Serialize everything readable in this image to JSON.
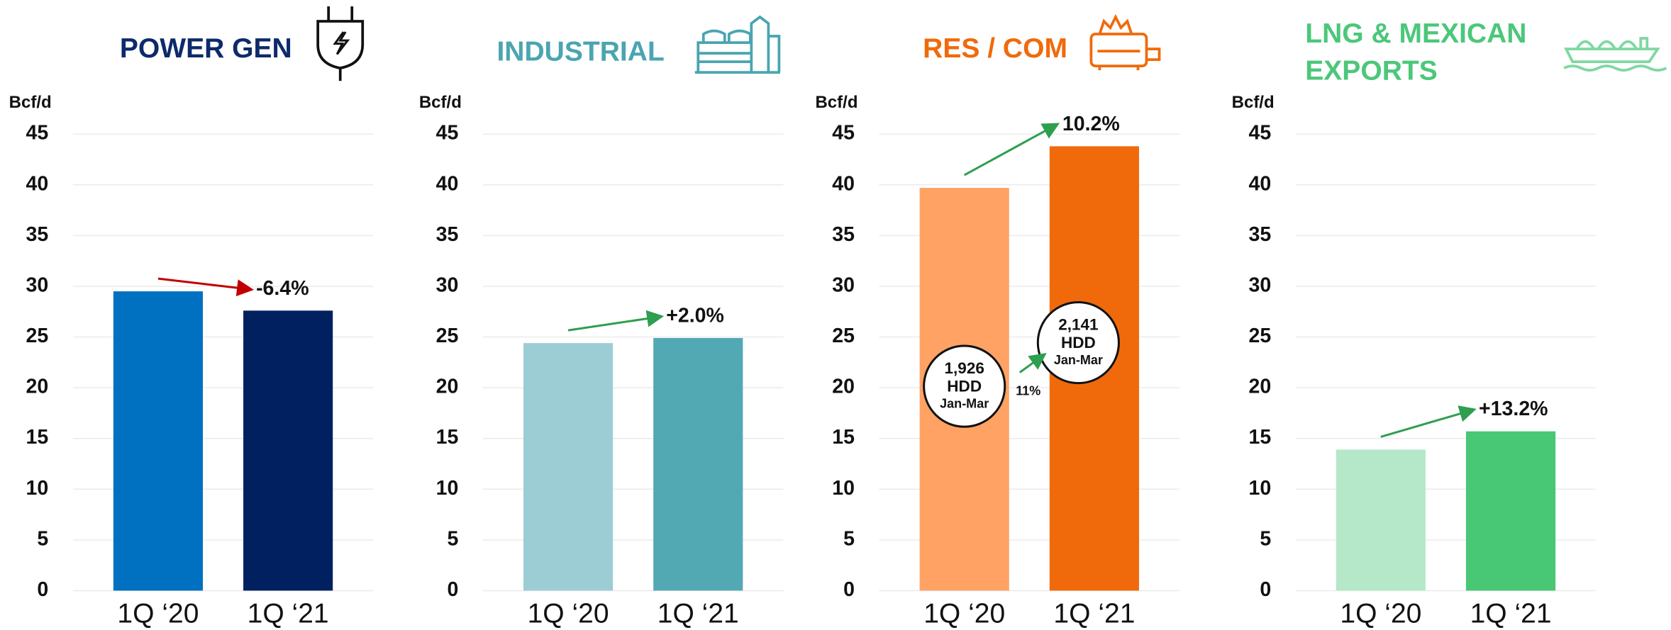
{
  "chart_data": [
    {
      "type": "bar",
      "title": [
        "POWER GEN"
      ],
      "title_color": "#0d2a6b",
      "y_label": "Bcf/d",
      "categories": [
        "1Q ‘20",
        "1Q ‘21"
      ],
      "values": [
        29.5,
        27.6
      ],
      "colors": [
        "#0070c0",
        "#002060"
      ],
      "change": -6.4,
      "change_label": "-6.4%",
      "arrow_color": "#c00000",
      "ylim": [
        0,
        45
      ],
      "yticks": [
        0,
        5,
        10,
        15,
        20,
        25,
        30,
        35,
        40,
        45
      ],
      "grid": true
    },
    {
      "type": "bar",
      "title": [
        "INDUSTRIAL"
      ],
      "title_color": "#4aa5b0",
      "y_label": "Bcf/d",
      "categories": [
        "1Q ‘20",
        "1Q ‘21"
      ],
      "values": [
        24.4,
        24.9
      ],
      "colors": [
        "#9ccdd4",
        "#52a9b3"
      ],
      "change": 2.0,
      "change_label": "+2.0%",
      "arrow_color": "#2e9e4f",
      "ylim": [
        0,
        45
      ],
      "yticks": [
        0,
        5,
        10,
        15,
        20,
        25,
        30,
        35,
        40,
        45
      ],
      "grid": true
    },
    {
      "type": "bar",
      "title": [
        "RES / COM"
      ],
      "title_color": "#f06a0c",
      "y_label": "Bcf/d",
      "categories": [
        "1Q ‘20",
        "1Q ‘21"
      ],
      "values": [
        39.7,
        43.8
      ],
      "colors": [
        "#ffa264",
        "#f06a0c"
      ],
      "change": 10.2,
      "change_label": "10.2%",
      "arrow_color": "#2e9e4f",
      "hdd": {
        "values": [
          1926,
          2141
        ],
        "value_labels": [
          "1,926",
          "2,141"
        ],
        "unit": "HDD",
        "period": "Jan-Mar",
        "change": 11,
        "change_label": "11%"
      },
      "ylim": [
        0,
        45
      ],
      "yticks": [
        0,
        5,
        10,
        15,
        20,
        25,
        30,
        35,
        40,
        45
      ],
      "grid": true
    },
    {
      "type": "bar",
      "title": [
        "LNG & MEXICAN",
        "EXPORTS"
      ],
      "title_color": "#4cc77a",
      "y_label": "Bcf/d",
      "categories": [
        "1Q ‘20",
        "1Q ‘21"
      ],
      "values": [
        13.9,
        15.7
      ],
      "colors": [
        "#b5e8c8",
        "#48c774"
      ],
      "change": 13.2,
      "change_label": "+13.2%",
      "arrow_color": "#2e9e4f",
      "ylim": [
        0,
        45
      ],
      "yticks": [
        0,
        5,
        10,
        15,
        20,
        25,
        30,
        35,
        40,
        45
      ],
      "grid": true
    }
  ]
}
